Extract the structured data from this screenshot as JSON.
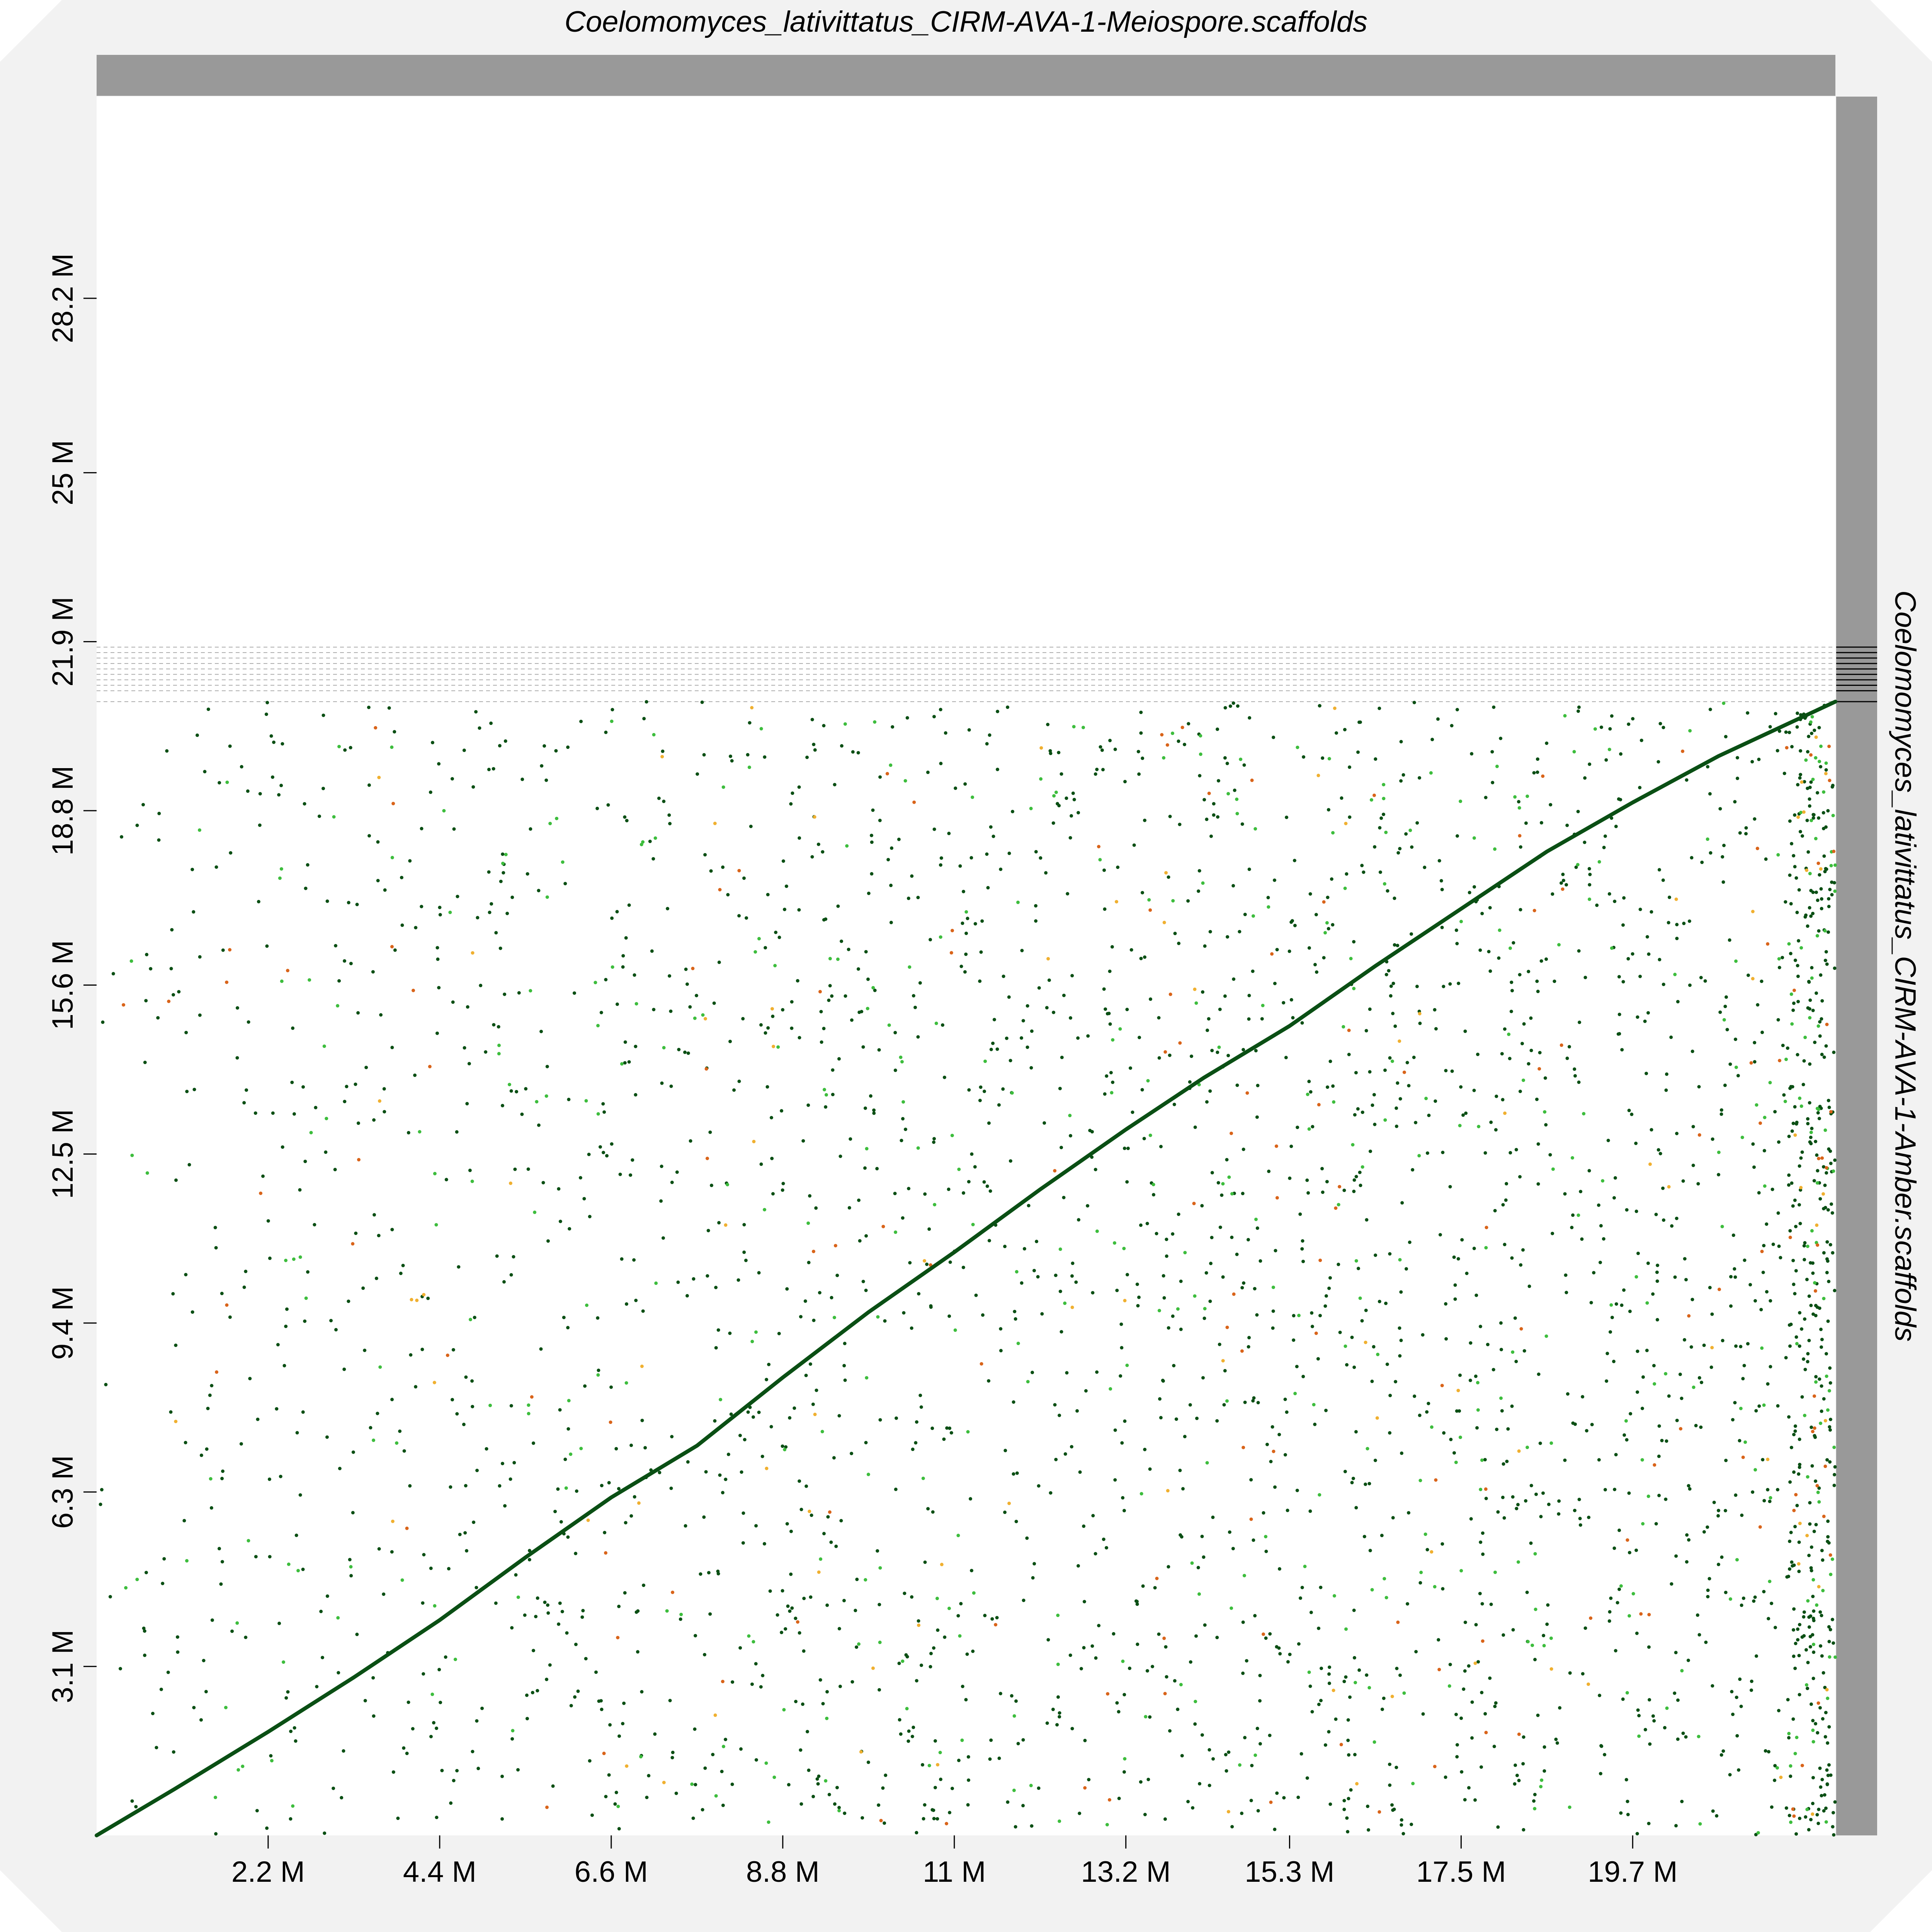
{
  "chart_data": {
    "type": "scatter",
    "title": "",
    "xlabel": "Coelomomyces_lativittatus_CIRM-AVA-1-Meiospore.scaffolds",
    "ylabel": "Coelomomyces_lativittatus_CIRM-AVA-1-Amber.scaffolds",
    "xlim": [
      0,
      22.3
    ],
    "ylim": [
      0,
      31.9
    ],
    "x_unit": "M",
    "y_unit": "M",
    "x_ticks": [
      2.2,
      4.4,
      6.6,
      8.8,
      11,
      13.2,
      15.3,
      17.5,
      19.7
    ],
    "x_tick_labels": [
      "2.2 M",
      "4.4 M",
      "6.6 M",
      "8.8 M",
      "11 M",
      "13.2 M",
      "15.3 M",
      "17.5 M",
      "19.7 M"
    ],
    "y_ticks": [
      3.1,
      6.3,
      9.4,
      12.5,
      15.6,
      18.8,
      21.9,
      25,
      28.2
    ],
    "y_tick_labels": [
      "3.1 M",
      "6.3 M",
      "9.4 M",
      "12.5 M",
      "15.6 M",
      "18.8 M",
      "21.9 M",
      "25 M",
      "28.2 M"
    ],
    "x_scaffolds": 1,
    "y_scaffold_boundaries": [
      20.8,
      21.0,
      21.1,
      21.2,
      21.3,
      21.4,
      21.5,
      21.6,
      21.7,
      21.8
    ],
    "grid": false,
    "legend": "none",
    "colors": {
      "dark_green": "#0a4f14",
      "light_green": "#3dbd3d",
      "orange": "#d9641a",
      "yellow": "#f0b030",
      "scaffold_bar": "#999999",
      "background": "#f2f2f2",
      "plot_background": "#ffffff"
    },
    "series": [
      {
        "color_key": "dark_green",
        "kind": "main-diagonal",
        "points": [
          [
            0,
            0
          ],
          [
            1.0,
            0.85
          ],
          [
            2.2,
            1.9
          ],
          [
            3.3,
            2.9
          ],
          [
            4.4,
            3.95
          ],
          [
            5.5,
            5.1
          ],
          [
            6.6,
            6.2
          ],
          [
            7.7,
            7.15
          ],
          [
            8.8,
            8.4
          ],
          [
            9.9,
            9.6
          ],
          [
            11.0,
            10.7
          ],
          [
            12.1,
            11.85
          ],
          [
            13.2,
            12.95
          ],
          [
            14.2,
            13.9
          ],
          [
            15.3,
            14.85
          ],
          [
            16.4,
            15.95
          ],
          [
            17.5,
            17.0
          ],
          [
            18.6,
            18.05
          ],
          [
            19.7,
            18.95
          ],
          [
            20.8,
            19.8
          ],
          [
            22.3,
            20.8
          ]
        ]
      },
      {
        "color_key": "dark_green",
        "kind": "scatter-noise",
        "count": 2600,
        "seed": 7
      },
      {
        "color_key": "light_green",
        "kind": "scatter-noise",
        "count": 480,
        "seed": 13
      },
      {
        "color_key": "orange",
        "kind": "scatter-noise",
        "count": 150,
        "seed": 29
      },
      {
        "color_key": "yellow",
        "kind": "scatter-noise",
        "count": 90,
        "seed": 41
      }
    ]
  }
}
